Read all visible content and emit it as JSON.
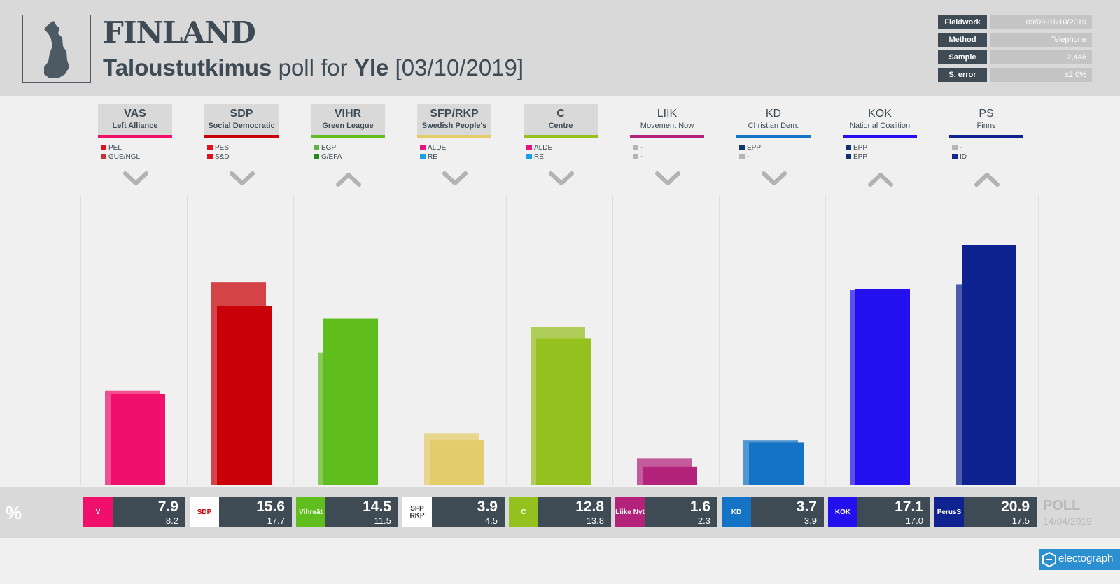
{
  "header": {
    "country": "FINLAND",
    "pollster": "Taloustutkimus",
    "poll_for": "poll for",
    "client": "Yle",
    "date": "[03/10/2019]"
  },
  "meta": [
    {
      "key": "Fieldwork",
      "value": "09/09-01/10/2019"
    },
    {
      "key": "Method",
      "value": "Telephone"
    },
    {
      "key": "Sample",
      "value": "2,446"
    },
    {
      "key": "S. error",
      "value": "±2.0%"
    }
  ],
  "colors": {
    "VAS": "#f0106b",
    "SDP": "#c90007",
    "VIHR": "#5fbe1d",
    "SFP/RKP": "#e4cc6a",
    "C": "#95c11f",
    "LIIK": "#b3227b",
    "KD": "#1473c4",
    "KOK": "#2410ee",
    "PS": "#0e2290"
  },
  "percent_symbol": "%",
  "poll_label": "POLL",
  "poll_date": "14/04/2019",
  "brand": "electograph",
  "chart_data": {
    "type": "bar",
    "title": "FINLAND",
    "subtitle": "Taloustutkimus poll for Yle [03/10/2019]",
    "ylim": [
      0,
      24
    ],
    "categories": [
      "VAS",
      "SDP",
      "VIHR",
      "SFP/RKP",
      "C",
      "LIIK",
      "KD",
      "KOK",
      "PS"
    ],
    "series": [
      {
        "name": "[03/10/2019]",
        "values": [
          7.9,
          15.6,
          14.5,
          3.9,
          12.8,
          1.6,
          3.7,
          17.1,
          20.9
        ]
      },
      {
        "name": "14/04/2019",
        "values": [
          8.2,
          17.7,
          11.5,
          4.5,
          13.8,
          2.3,
          3.9,
          17.0,
          17.5
        ]
      }
    ],
    "parties": [
      {
        "abbr": "VAS",
        "full": "Left Alliance",
        "boxed": true,
        "trend": "down",
        "groups": [
          {
            "label": "PEL",
            "color": "#e2101e"
          },
          {
            "label": "GUE/NGL",
            "color": "#c8333b"
          }
        ],
        "current": "7.9",
        "previous": "8.2",
        "logo_text": "V",
        "logo_bg": "#f0106b"
      },
      {
        "abbr": "SDP",
        "full": "Social Democratic",
        "boxed": true,
        "trend": "down",
        "groups": [
          {
            "label": "PES",
            "color": "#e2101e"
          },
          {
            "label": "S&D",
            "color": "#e2101e"
          }
        ],
        "current": "15.6",
        "previous": "17.7",
        "logo_text": "SDP",
        "logo_bg": "#ffffff"
      },
      {
        "abbr": "VIHR",
        "full": "Green League",
        "boxed": true,
        "trend": "up",
        "groups": [
          {
            "label": "EGP",
            "color": "#5fb246"
          },
          {
            "label": "G/EFA",
            "color": "#1d8a1d"
          }
        ],
        "current": "14.5",
        "previous": "11.5",
        "logo_text": "Vihreät",
        "logo_bg": "#5fbe1d"
      },
      {
        "abbr": "SFP/RKP",
        "full": "Swedish People's",
        "boxed": true,
        "trend": "down",
        "groups": [
          {
            "label": "ALDE",
            "color": "#e8127c"
          },
          {
            "label": "RE",
            "color": "#1aa0e6"
          }
        ],
        "current": "3.9",
        "previous": "4.5",
        "logo_text": "SFP RKP",
        "logo_bg": "#ffffff"
      },
      {
        "abbr": "C",
        "full": "Centre",
        "boxed": true,
        "trend": "down",
        "groups": [
          {
            "label": "ALDE",
            "color": "#e8127c"
          },
          {
            "label": "RE",
            "color": "#1aa0e6"
          }
        ],
        "current": "12.8",
        "previous": "13.8",
        "logo_text": "C",
        "logo_bg": "#95c11f"
      },
      {
        "abbr": "LIIK",
        "full": "Movement Now",
        "boxed": false,
        "trend": "down",
        "groups": [
          {
            "label": "-",
            "color": "#b5b5b5"
          },
          {
            "label": "-",
            "color": "#b5b5b5"
          }
        ],
        "current": "1.6",
        "previous": "2.3",
        "logo_text": "Liike Nyt",
        "logo_bg": "#b3227b"
      },
      {
        "abbr": "KD",
        "full": "Christian Dem.",
        "boxed": false,
        "trend": "down",
        "groups": [
          {
            "label": "EPP",
            "color": "#11356b"
          },
          {
            "label": "-",
            "color": "#b5b5b5"
          }
        ],
        "current": "3.7",
        "previous": "3.9",
        "logo_text": "KD",
        "logo_bg": "#1473c4"
      },
      {
        "abbr": "KOK",
        "full": "National Coalition",
        "boxed": false,
        "trend": "up",
        "groups": [
          {
            "label": "EPP",
            "color": "#11356b"
          },
          {
            "label": "EPP",
            "color": "#11356b"
          }
        ],
        "current": "17.1",
        "previous": "17.0",
        "logo_text": "KOK",
        "logo_bg": "#2410ee"
      },
      {
        "abbr": "PS",
        "full": "Finns",
        "boxed": false,
        "trend": "up",
        "groups": [
          {
            "label": "-",
            "color": "#b5b5b5"
          },
          {
            "label": "ID",
            "color": "#14288a"
          }
        ],
        "current": "20.9",
        "previous": "17.5",
        "logo_text": "PerusS",
        "logo_bg": "#0e2290"
      }
    ]
  }
}
